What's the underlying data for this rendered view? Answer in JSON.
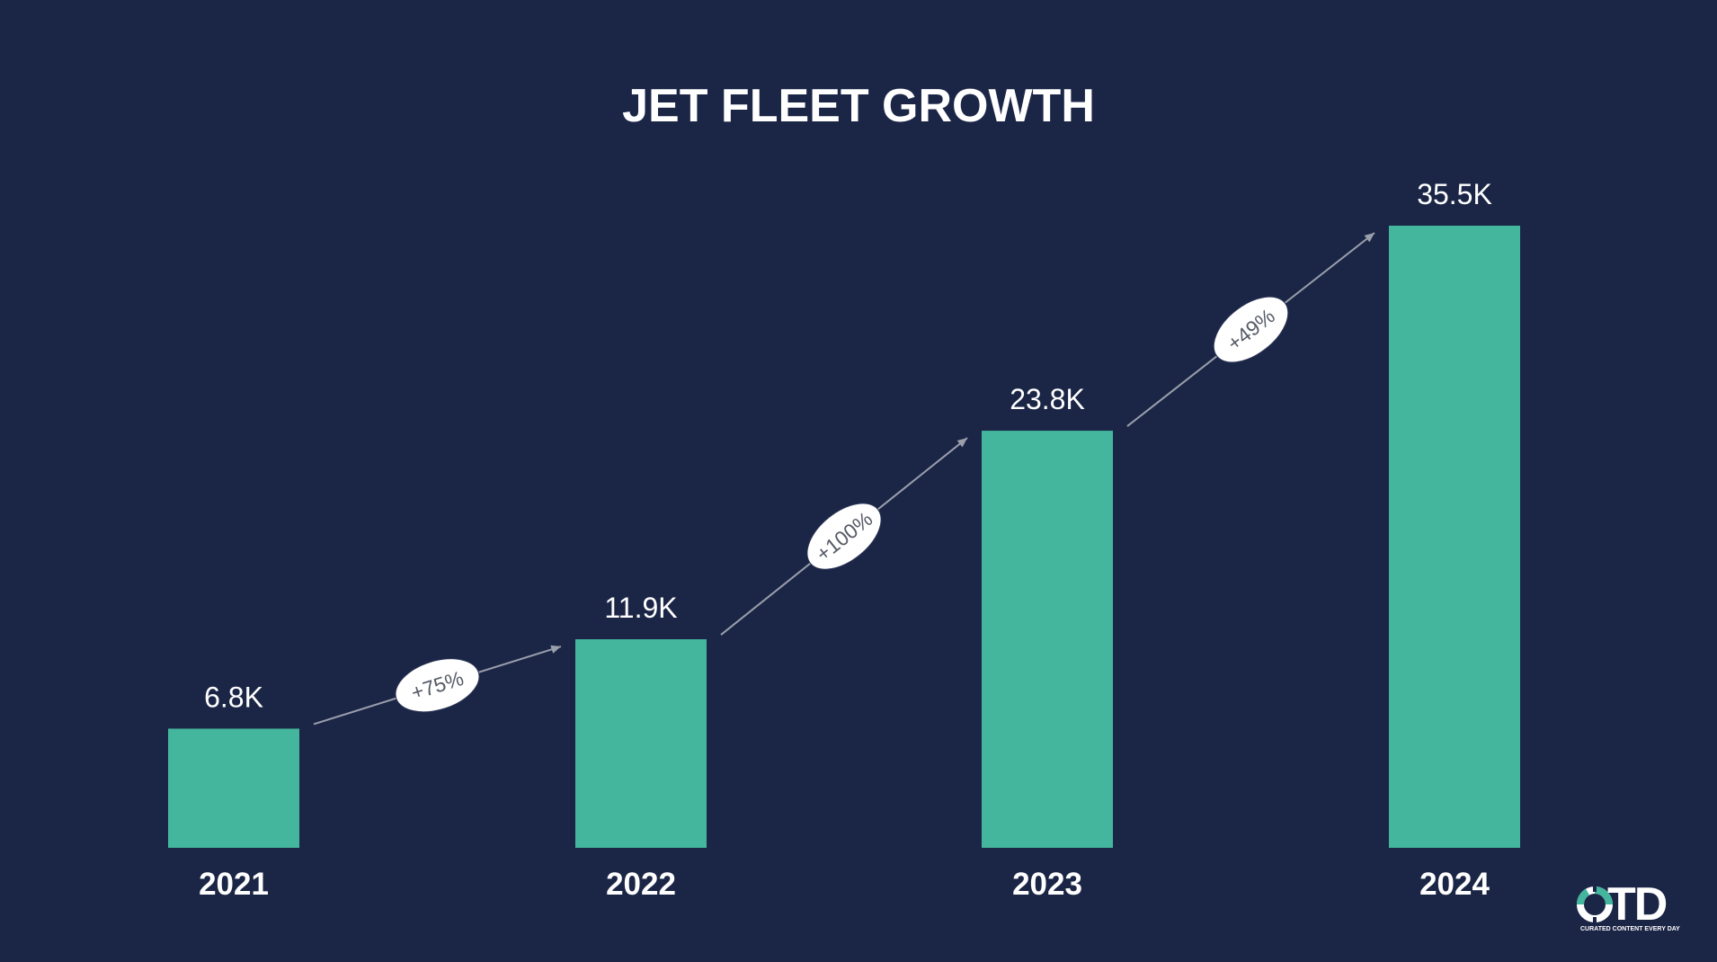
{
  "chart_data": {
    "type": "bar",
    "title": "JET FLEET GROWTH",
    "categories": [
      "2021",
      "2022",
      "2023",
      "2024"
    ],
    "values": [
      6.8,
      11.9,
      23.8,
      35.5
    ],
    "value_labels": [
      "6.8K",
      "11.9K",
      "23.8K",
      "35.5K"
    ],
    "growth_labels": [
      "+75%",
      "+100%",
      "+49%"
    ],
    "ylim": [
      0,
      35.5
    ],
    "grid": false,
    "legend": "none"
  },
  "colors": {
    "background": "#1b2647",
    "bar": "#44b69d",
    "text": "#ffffff",
    "connector": "#9a9fab",
    "badge_fill": "#ffffff",
    "badge_text": "#555a66"
  },
  "logo": {
    "letters": "TD",
    "tagline": "CURATED CONTENT EVERY DAY",
    "icon": "otd-ring-icon"
  }
}
